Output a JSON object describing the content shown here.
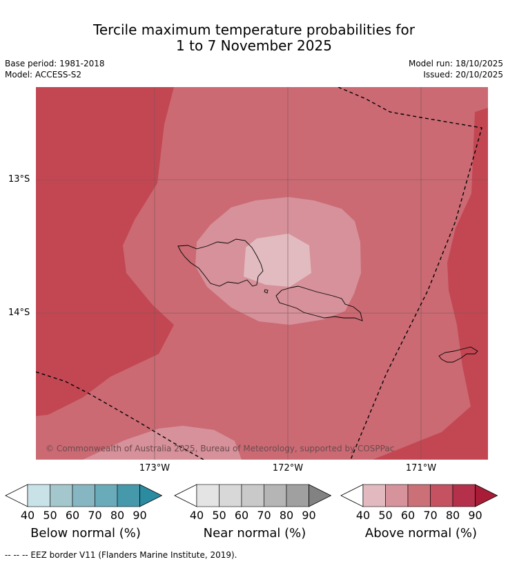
{
  "title": {
    "line1": "Tercile maximum temperature probabilities for",
    "line2": "1 to 7 November 2025"
  },
  "meta": {
    "base_period": "Base period: 1981-2018",
    "model": "Model: ACCESS-S2",
    "model_run": "Model run: 18/10/2025",
    "issued": "Issued: 20/10/2025"
  },
  "map": {
    "lat_labels": [
      "13°S",
      "14°S"
    ],
    "lon_labels": [
      "173°W",
      "172°W",
      "171°W"
    ],
    "copyright": "© Commonwealth of Australia 2025, Bureau of Meteorology, supported by COSPPac",
    "colors": {
      "p80": "#c24753",
      "p70": "#cb6a73",
      "p60": "#d6919a",
      "p50": "#e2bbc0"
    }
  },
  "colorbars": [
    {
      "title": "Below normal (%)",
      "ticks": [
        "40",
        "50",
        "60",
        "70",
        "80",
        "90"
      ],
      "colors": [
        "#c9e2e8",
        "#a4c7cd",
        "#86b6c2",
        "#6aabba",
        "#4699aa",
        "#2b8ba0"
      ]
    },
    {
      "title": "Near normal (%)",
      "ticks": [
        "40",
        "50",
        "60",
        "70",
        "80",
        "90"
      ],
      "colors": [
        "#e4e4e4",
        "#d8d8d8",
        "#c9c9c9",
        "#b5b5b5",
        "#a0a0a0",
        "#828282"
      ]
    },
    {
      "title": "Above normal (%)",
      "ticks": [
        "40",
        "50",
        "60",
        "70",
        "80",
        "90"
      ],
      "colors": [
        "#e1b9be",
        "#d6939b",
        "#cc7078",
        "#c45261",
        "#b5304a",
        "#a81c38"
      ]
    }
  ],
  "footnote": "--  --  -- EEZ border V11 (Flanders Marine Institute, 2019)."
}
